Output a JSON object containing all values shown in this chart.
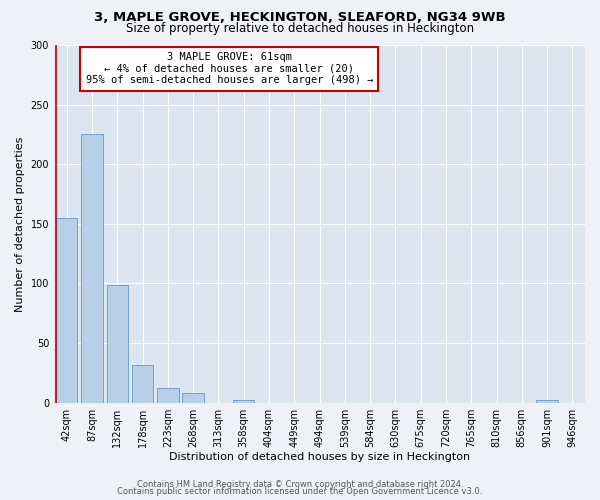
{
  "title1": "3, MAPLE GROVE, HECKINGTON, SLEAFORD, NG34 9WB",
  "title2": "Size of property relative to detached houses in Heckington",
  "xlabel": "Distribution of detached houses by size in Heckington",
  "ylabel": "Number of detached properties",
  "bar_labels": [
    "42sqm",
    "87sqm",
    "132sqm",
    "178sqm",
    "223sqm",
    "268sqm",
    "313sqm",
    "358sqm",
    "404sqm",
    "449sqm",
    "494sqm",
    "539sqm",
    "584sqm",
    "630sqm",
    "675sqm",
    "720sqm",
    "765sqm",
    "810sqm",
    "856sqm",
    "901sqm",
    "946sqm"
  ],
  "bar_values": [
    155,
    225,
    99,
    32,
    12,
    8,
    0,
    2,
    0,
    0,
    0,
    0,
    0,
    0,
    0,
    0,
    0,
    0,
    0,
    2,
    0
  ],
  "bar_color": "#b8cfe8",
  "bar_edge_color": "#6699cc",
  "annotation_box_text": "3 MAPLE GROVE: 61sqm\n← 4% of detached houses are smaller (20)\n95% of semi-detached houses are larger (498) →",
  "annotation_box_edge_color": "#cc0000",
  "property_line_color": "#cc0000",
  "ylim": [
    0,
    300
  ],
  "yticks": [
    0,
    50,
    100,
    150,
    200,
    250,
    300
  ],
  "footer1": "Contains HM Land Registry data © Crown copyright and database right 2024.",
  "footer2": "Contains public sector information licensed under the Open Government Licence v3.0.",
  "bg_color": "#eef2f8",
  "plot_bg_color": "#dce6f0",
  "grid_color": "#ffffff",
  "title1_fontsize": 9.5,
  "title2_fontsize": 8.5,
  "axis_label_fontsize": 8,
  "tick_fontsize": 7,
  "footer_fontsize": 6
}
